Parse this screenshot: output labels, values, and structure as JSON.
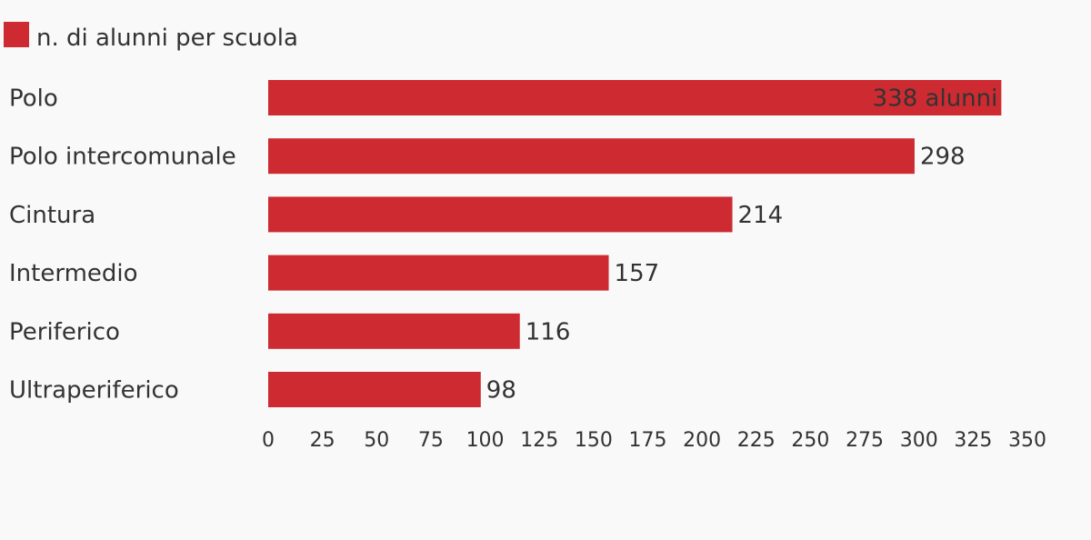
{
  "chart_data": {
    "type": "bar",
    "orientation": "horizontal",
    "categories": [
      "Polo",
      "Polo intercomunale",
      "Cintura",
      "Intermedio",
      "Periferico",
      "Ultraperiferico"
    ],
    "series": [
      {
        "name": "n. di alunni per scuola",
        "values": [
          338,
          298,
          214,
          157,
          116,
          98
        ]
      }
    ],
    "data_labels": [
      "338 alunni",
      "298",
      "214",
      "157",
      "116",
      "98"
    ],
    "xlim": [
      0,
      350
    ],
    "x_ticks": [
      0,
      25,
      50,
      75,
      100,
      125,
      150,
      175,
      200,
      225,
      250,
      275,
      300,
      325,
      350
    ],
    "legend_position": "top-left",
    "grid": false,
    "bar_color": "#cd2b31"
  }
}
